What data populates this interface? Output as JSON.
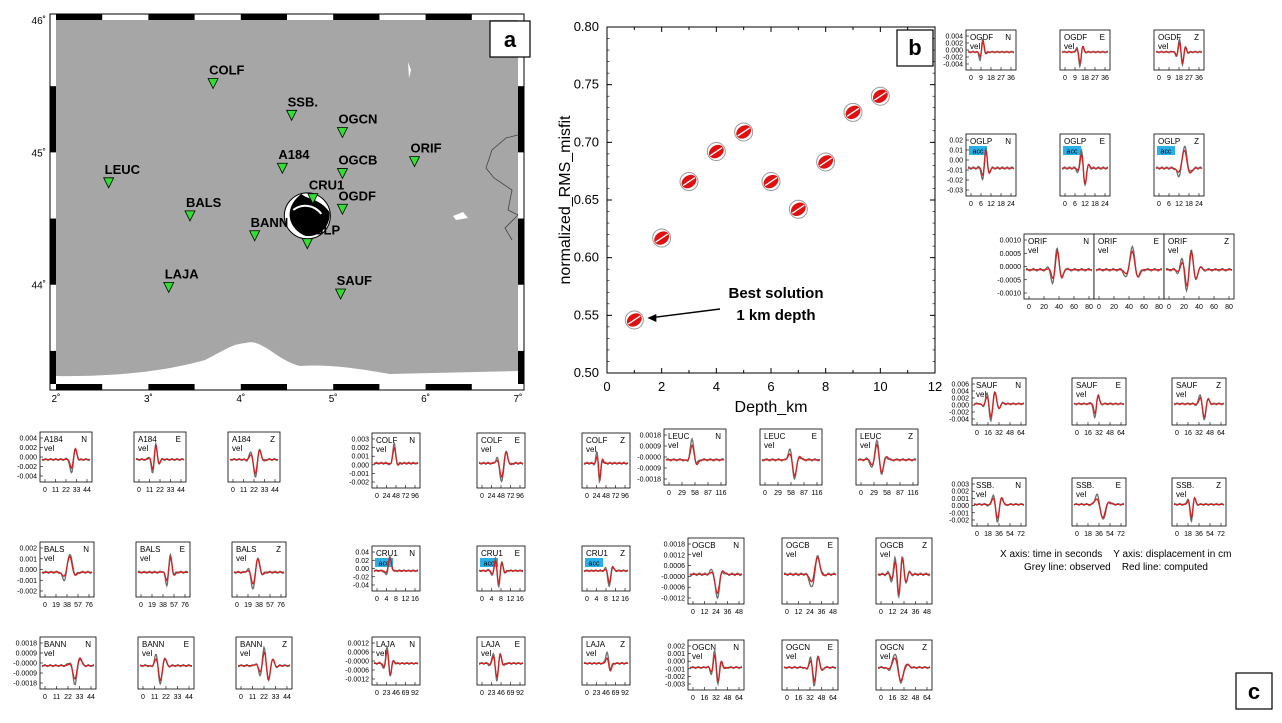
{
  "panel_a": {
    "label": "a",
    "lat_labels": [
      "46˚",
      "45˚",
      "44˚"
    ],
    "lon_labels": [
      "2˚",
      "3˚",
      "4˚",
      "5˚",
      "6˚",
      "7˚"
    ],
    "stations": [
      {
        "code": "COLF",
        "lon": 3.7,
        "lat": 45.52
      },
      {
        "code": "SSB.",
        "lon": 4.55,
        "lat": 45.28
      },
      {
        "code": "OGCN",
        "lon": 5.1,
        "lat": 45.15
      },
      {
        "code": "A184",
        "lon": 4.45,
        "lat": 44.88
      },
      {
        "code": "OGCB",
        "lon": 5.1,
        "lat": 44.84
      },
      {
        "code": "ORIF",
        "lon": 5.88,
        "lat": 44.93
      },
      {
        "code": "LEUC",
        "lon": 2.57,
        "lat": 44.77
      },
      {
        "code": "CRU1",
        "lon": 4.78,
        "lat": 44.65
      },
      {
        "code": "OGDF",
        "lon": 5.1,
        "lat": 44.57
      },
      {
        "code": "BALS",
        "lon": 3.45,
        "lat": 44.52
      },
      {
        "code": "BANN",
        "lon": 4.15,
        "lat": 44.37
      },
      {
        "code": "OGLP",
        "lon": 4.72,
        "lat": 44.31
      },
      {
        "code": "LAJA",
        "lon": 3.22,
        "lat": 43.98
      },
      {
        "code": "SAUF",
        "lon": 5.08,
        "lat": 43.93
      }
    ],
    "event": {
      "lon": 4.72,
      "lat": 44.52
    }
  },
  "panel_b": {
    "label": "b",
    "chart_data": {
      "type": "scatter",
      "xlabel": "Depth_km",
      "ylabel": "normalized_RMS_misfit",
      "xlim": [
        0,
        12
      ],
      "ylim": [
        0.5,
        0.8
      ],
      "xticks": [
        "0",
        "2",
        "4",
        "6",
        "8",
        "10",
        "12"
      ],
      "yticks": [
        "0.50",
        "0.55",
        "0.60",
        "0.65",
        "0.70",
        "0.75",
        "0.80"
      ],
      "points": [
        {
          "x": 1,
          "y": 0.546
        },
        {
          "x": 2,
          "y": 0.617
        },
        {
          "x": 3,
          "y": 0.666
        },
        {
          "x": 4,
          "y": 0.692
        },
        {
          "x": 5,
          "y": 0.709
        },
        {
          "x": 6,
          "y": 0.666
        },
        {
          "x": 7,
          "y": 0.642
        },
        {
          "x": 8,
          "y": 0.683
        },
        {
          "x": 9,
          "y": 0.726
        },
        {
          "x": 10,
          "y": 0.74
        }
      ],
      "annotation_line1": "Best solution",
      "annotation_line2": "1 km depth"
    }
  },
  "panel_c": {
    "label": "c",
    "axis_note": "X axis: time in seconds    Y axis: displacement in cm",
    "line_note": "Grey line: observed    Red line: computed",
    "stations": [
      {
        "code": "OGDF",
        "type": "vel",
        "yticks": [
          "0.004",
          "0.002",
          "0.000",
          "-0.002",
          "-0.004"
        ],
        "xticks": [
          "0",
          "9",
          "18",
          "27",
          "36"
        ]
      },
      {
        "code": "OGLP",
        "type": "acc",
        "yticks": [
          "0.02",
          "0.01",
          "0.00",
          "-0.01",
          "-0.02",
          "-0.03"
        ],
        "xticks": [
          "0",
          "6",
          "12",
          "18",
          "24"
        ]
      },
      {
        "code": "ORIF",
        "type": "vel",
        "yticks": [
          "0.0010",
          "0.0005",
          "0.0000",
          "-0.0005",
          "-0.0010"
        ],
        "xticks": [
          "0",
          "20",
          "40",
          "60",
          "80"
        ]
      },
      {
        "code": "SAUF",
        "type": "vel",
        "yticks": [
          "0.006",
          "0.004",
          "0.002",
          "0.000",
          "-0.002",
          "-0.004"
        ],
        "xticks": [
          "0",
          "16",
          "32",
          "48",
          "64"
        ]
      },
      {
        "code": "SSB.",
        "type": "vel",
        "yticks": [
          "0.003",
          "0.002",
          "0.001",
          "0.000",
          "-0.001",
          "-0.002"
        ],
        "xticks": [
          "0",
          "18",
          "36",
          "54",
          "72"
        ]
      },
      {
        "code": "A184",
        "type": "vel",
        "yticks": [
          "0.004",
          "0.002",
          "0.000",
          "-0.002",
          "-0.004"
        ],
        "xticks": [
          "0",
          "11",
          "22",
          "33",
          "44"
        ]
      },
      {
        "code": "BALS",
        "type": "vel",
        "yticks": [
          "0.002",
          "0.001",
          "0.000",
          "-0.001",
          "-0.002"
        ],
        "xticks": [
          "0",
          "19",
          "38",
          "57",
          "76"
        ]
      },
      {
        "code": "BANN",
        "type": "vel",
        "yticks": [
          "0.0018",
          "0.0009",
          "-0.0000",
          "-0.0009",
          "-0.0018"
        ],
        "xticks": [
          "0",
          "11",
          "22",
          "33",
          "44"
        ]
      },
      {
        "code": "COLF",
        "type": "vel",
        "yticks": [
          "0.003",
          "0.002",
          "0.001",
          "0.000",
          "-0.001",
          "-0.002"
        ],
        "xticks": [
          "0",
          "24",
          "48",
          "72",
          "96"
        ]
      },
      {
        "code": "CRU1",
        "type": "acc",
        "yticks": [
          "0.04",
          "0.02",
          "0.00",
          "-0.02",
          "-0.04"
        ],
        "xticks": [
          "0",
          "4",
          "8",
          "12",
          "16"
        ]
      },
      {
        "code": "LAJA",
        "type": "vel",
        "yticks": [
          "0.0012",
          "0.0006",
          "-0.0000",
          "-0.0006",
          "-0.0012"
        ],
        "xticks": [
          "0",
          "23",
          "46",
          "69",
          "92"
        ]
      },
      {
        "code": "LEUC",
        "type": "vel",
        "yticks": [
          "0.0018",
          "0.0009",
          "-0.0000",
          "-0.0009",
          "-0.0018"
        ],
        "xticks": [
          "0",
          "29",
          "58",
          "87",
          "116"
        ]
      },
      {
        "code": "OGCB",
        "type": "vel",
        "yticks": [
          "0.0018",
          "0.0012",
          "0.0006",
          "-0.0000",
          "-0.0006",
          "-0.0012"
        ],
        "xticks": [
          "0",
          "12",
          "24",
          "36",
          "48"
        ]
      },
      {
        "code": "OGCN",
        "type": "vel",
        "yticks": [
          "0.002",
          "0.001",
          "0.000",
          "-0.001",
          "-0.002",
          "-0.003"
        ],
        "xticks": [
          "0",
          "16",
          "32",
          "48",
          "64"
        ]
      }
    ],
    "components": [
      "N",
      "E",
      "Z"
    ]
  },
  "colors": {
    "observed": "#6e6e6e",
    "computed": "#d42020",
    "land": "#a6a6a6",
    "station": "#33dd33",
    "acc_badge": "#2ab0e8",
    "marker": "#e01010"
  }
}
